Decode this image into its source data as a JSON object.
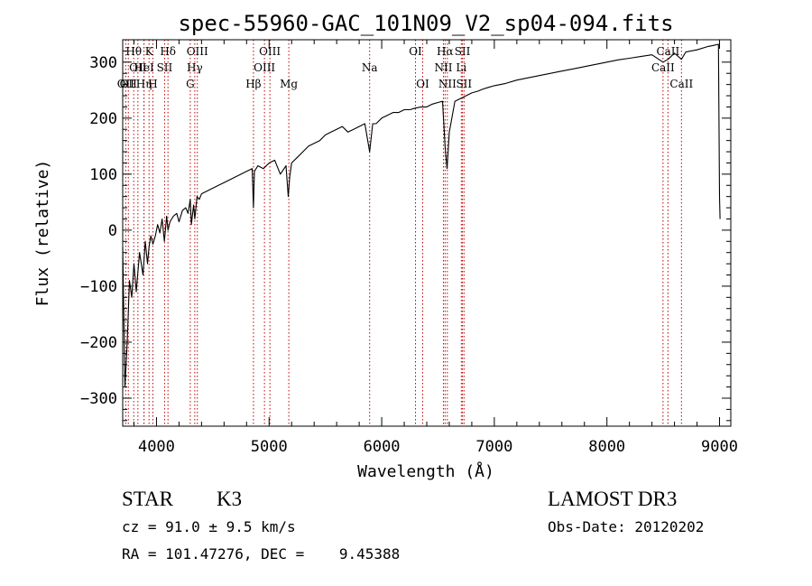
{
  "chart_data": {
    "type": "line",
    "title": "spec-55960-GAC_101N09_V2_sp04-094.fits",
    "xlabel": "Wavelength (Å)",
    "ylabel": "Flux (relative)",
    "xlim": [
      3700,
      9100
    ],
    "ylim": [
      -350,
      340
    ],
    "xticks": [
      4000,
      5000,
      6000,
      7000,
      8000,
      9000
    ],
    "yticks": [
      -300,
      -200,
      -100,
      0,
      100,
      200,
      300
    ],
    "series": [
      {
        "name": "spectrum",
        "x": [
          3700,
          3720,
          3740,
          3760,
          3780,
          3800,
          3820,
          3850,
          3880,
          3900,
          3920,
          3934,
          3950,
          3968,
          3990,
          4010,
          4030,
          4050,
          4070,
          4090,
          4102,
          4120,
          4150,
          4180,
          4200,
          4230,
          4260,
          4280,
          4300,
          4310,
          4330,
          4340,
          4360,
          4380,
          4400,
          4450,
          4500,
          4550,
          4600,
          4650,
          4700,
          4750,
          4800,
          4850,
          4861,
          4870,
          4900,
          4950,
          5000,
          5050,
          5100,
          5150,
          5170,
          5183,
          5200,
          5250,
          5300,
          5350,
          5400,
          5450,
          5500,
          5550,
          5600,
          5650,
          5700,
          5750,
          5800,
          5850,
          5893,
          5920,
          5950,
          6000,
          6050,
          6100,
          6150,
          6200,
          6250,
          6300,
          6350,
          6400,
          6450,
          6500,
          6540,
          6563,
          6580,
          6600,
          6650,
          6700,
          6750,
          6800,
          6850,
          6900,
          6950,
          7000,
          7100,
          7200,
          7300,
          7400,
          7500,
          7600,
          7700,
          7800,
          7900,
          8000,
          8100,
          8200,
          8300,
          8400,
          8498,
          8542,
          8600,
          8662,
          8700,
          8800,
          8900,
          8950,
          8990,
          9000,
          9005
        ],
        "values": [
          -30,
          -280,
          -200,
          -90,
          -120,
          -60,
          -110,
          -40,
          -80,
          -20,
          -60,
          -30,
          -10,
          -25,
          -10,
          10,
          -5,
          20,
          -20,
          25,
          0,
          15,
          25,
          30,
          15,
          35,
          40,
          30,
          55,
          10,
          45,
          20,
          60,
          55,
          65,
          70,
          75,
          80,
          85,
          90,
          95,
          100,
          105,
          110,
          40,
          105,
          115,
          110,
          120,
          125,
          100,
          115,
          60,
          95,
          120,
          130,
          140,
          150,
          155,
          160,
          170,
          175,
          180,
          185,
          175,
          180,
          185,
          190,
          140,
          190,
          190,
          200,
          205,
          210,
          210,
          215,
          215,
          218,
          220,
          220,
          225,
          228,
          230,
          150,
          110,
          175,
          230,
          235,
          240,
          245,
          248,
          252,
          255,
          258,
          262,
          268,
          272,
          276,
          280,
          284,
          288,
          292,
          296,
          300,
          304,
          307,
          310,
          313,
          300,
          305,
          316,
          305,
          318,
          322,
          328,
          330,
          332,
          60,
          20
        ]
      }
    ],
    "lines": [
      {
        "wl": 3727,
        "row": 2,
        "label": "OII"
      },
      {
        "wl": 3750,
        "row": 2,
        "label": "OII"
      },
      {
        "wl": 3798,
        "row": 0,
        "label": "Hθ"
      },
      {
        "wl": 3835,
        "row": 1,
        "label": "OII"
      },
      {
        "wl": 3889,
        "row": 1,
        "label": "HeI"
      },
      {
        "wl": 3934,
        "row": 0,
        "label": "K"
      },
      {
        "wl": 3889,
        "row": 2,
        "label": "Hη"
      },
      {
        "wl": 3968,
        "row": 2,
        "label": "H"
      },
      {
        "wl": 4072,
        "row": 1,
        "label": "SII"
      },
      {
        "wl": 4102,
        "row": 0,
        "label": "Hδ"
      },
      {
        "wl": 4300,
        "row": 2,
        "label": "G"
      },
      {
        "wl": 4340,
        "row": 1,
        "label": "Hγ"
      },
      {
        "wl": 4363,
        "row": 0,
        "label": "OIII"
      },
      {
        "wl": 4861,
        "row": 2,
        "label": "Hβ"
      },
      {
        "wl": 4959,
        "row": 1,
        "label": "OIII"
      },
      {
        "wl": 5007,
        "row": 0,
        "label": "OIII"
      },
      {
        "wl": 5175,
        "row": 2,
        "label": "Mg"
      },
      {
        "wl": 5893,
        "row": 1,
        "label": "Na"
      },
      {
        "wl": 6300,
        "row": 0,
        "label": "OI"
      },
      {
        "wl": 6364,
        "row": 2,
        "label": "OI"
      },
      {
        "wl": 6548,
        "row": 1,
        "label": "NII"
      },
      {
        "wl": 6563,
        "row": 0,
        "label": "Hα"
      },
      {
        "wl": 6583,
        "row": 2,
        "label": "NII"
      },
      {
        "wl": 6707,
        "row": 1,
        "label": "Li"
      },
      {
        "wl": 6717,
        "row": 0,
        "label": "SII"
      },
      {
        "wl": 6731,
        "row": 2,
        "label": "SII"
      },
      {
        "wl": 8498,
        "row": 1,
        "label": "CaII"
      },
      {
        "wl": 8542,
        "row": 0,
        "label": "CaII"
      },
      {
        "wl": 8662,
        "row": 2,
        "label": "CaII"
      }
    ]
  },
  "info": {
    "class": "STAR",
    "subclass": "K3",
    "survey": "LAMOST DR3",
    "cz": "cz = 91.0 ± 9.5 km/s",
    "obs_date": "Obs-Date: 20120202",
    "coords": "RA = 101.47276, DEC =    9.45388"
  }
}
